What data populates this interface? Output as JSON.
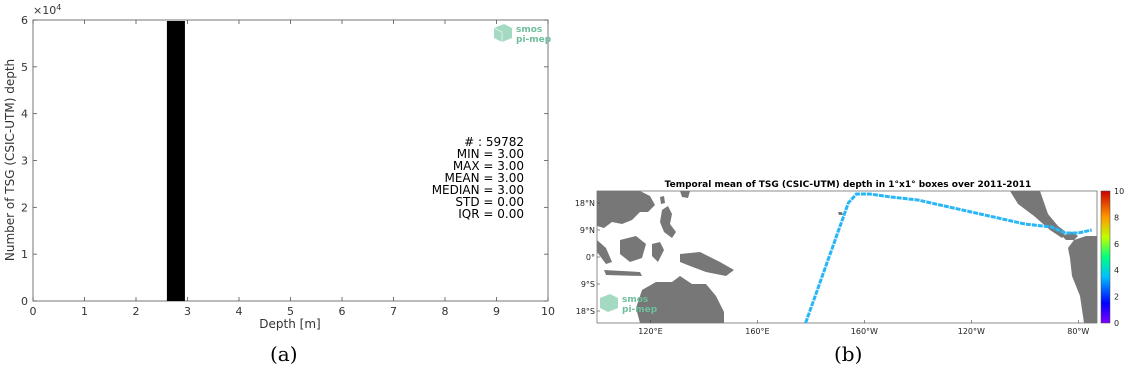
{
  "captions": {
    "a": "(a)",
    "b": "(b)"
  },
  "logo": {
    "line1": "smos",
    "line2": "pi-mep",
    "color": "#6fbf9c"
  },
  "chart_data": [
    {
      "type": "bar",
      "xlabel": "Depth [m]",
      "ylabel": "Number of TSG (CSIC-UTM) depth",
      "yexponent": "×10",
      "yexponent_power": "4",
      "xlim": [
        0,
        10
      ],
      "ylim": [
        0,
        6
      ],
      "xticks": [
        "0",
        "1",
        "2",
        "3",
        "4",
        "5",
        "6",
        "7",
        "8",
        "9",
        "10"
      ],
      "yticks": [
        "0",
        "1",
        "2",
        "3",
        "4",
        "5",
        "6"
      ],
      "bars": [
        {
          "x0": 2.6,
          "x1": 2.95,
          "value": 5.9782
        }
      ],
      "bar_color": "#000000",
      "stats": [
        "# : 59782",
        "MIN = 3.00",
        "MAX =  3.00",
        "MEAN = 3.00",
        "MEDIAN = 3.00",
        "STD = 0.00",
        "IQR = 0.00"
      ]
    },
    {
      "type": "heatmap",
      "title": "Temporal mean of TSG (CSIC-UTM) depth in 1°x1° boxes over 2011-2011",
      "xticks": [
        "120°E",
        "160°E",
        "160°W",
        "120°W",
        "80°W"
      ],
      "yticks": [
        "18°N",
        "9°N",
        "0°",
        "9°S",
        "18°S"
      ],
      "xlim_lon": [
        100,
        287
      ],
      "ylim_lat": [
        -22,
        22
      ],
      "colorbar": {
        "min": 0,
        "max": 10,
        "ticks": [
          "10",
          "8",
          "6",
          "4",
          "2",
          "0"
        ]
      },
      "track_color": "#29b6f6",
      "track_value": 3,
      "land_color": "#777777",
      "track_lonlat": [
        [
          178,
          -22
        ],
        [
          180,
          -17
        ],
        [
          182,
          -12
        ],
        [
          184,
          -7
        ],
        [
          186,
          -2
        ],
        [
          188,
          3
        ],
        [
          190,
          8
        ],
        [
          192,
          13
        ],
        [
          194,
          18
        ],
        [
          197,
          21
        ],
        [
          202,
          21
        ],
        [
          210,
          20
        ],
        [
          220,
          19
        ],
        [
          230,
          17
        ],
        [
          240,
          15
        ],
        [
          250,
          13
        ],
        [
          260,
          11
        ],
        [
          270,
          10
        ],
        [
          275,
          8
        ],
        [
          280,
          8
        ],
        [
          285,
          9
        ]
      ]
    }
  ]
}
